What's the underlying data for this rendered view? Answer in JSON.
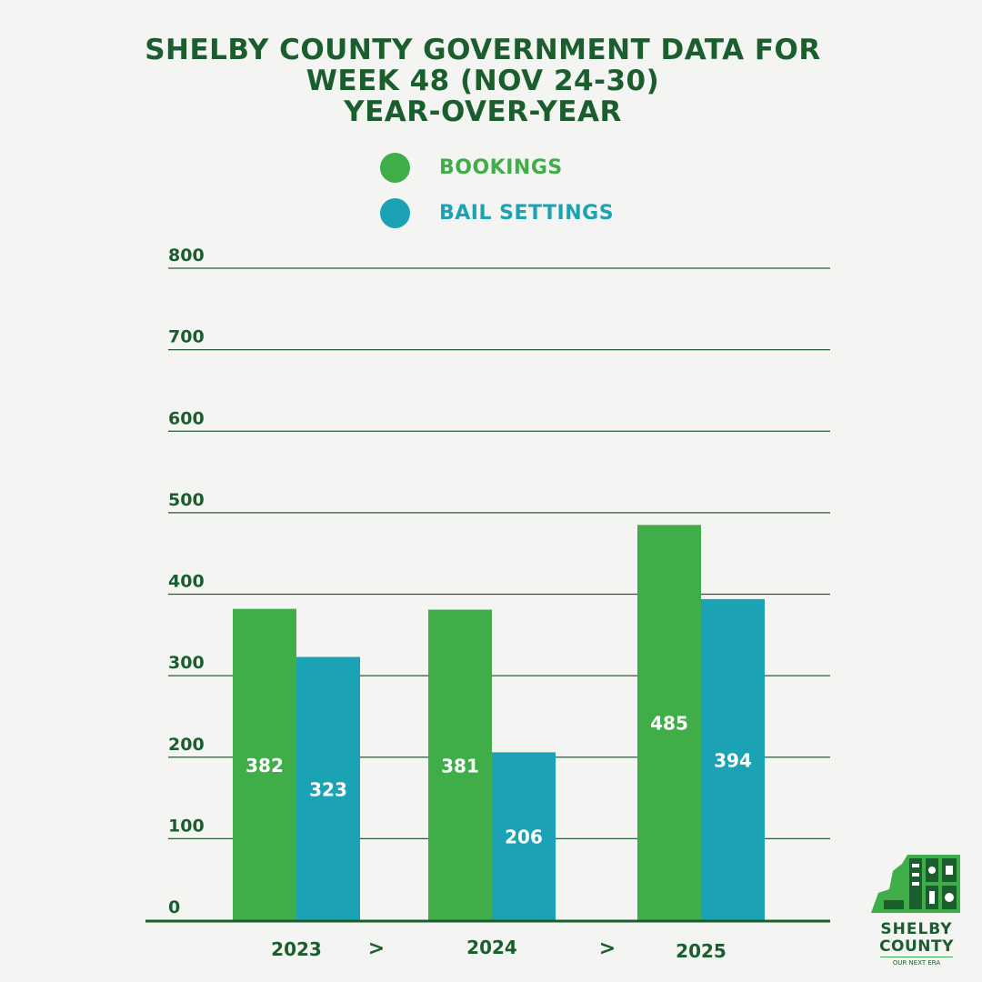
{
  "title_lines": [
    "SHELBY COUNTY GOVERNMENT DATA FOR",
    "WEEK 48 (NOV 24-30)",
    "YEAR-OVER-YEAR"
  ],
  "colors": {
    "title": "#1b5e2e",
    "bookings": "#3fae49",
    "bail": "#1ba3b5",
    "grid": "#2a5a36",
    "background": "#f4f4f2"
  },
  "legend": [
    {
      "label": "BOOKINGS",
      "color": "#3fae49"
    },
    {
      "label": "BAIL SETTINGS",
      "color": "#1ba3b5"
    }
  ],
  "chart_data": {
    "type": "bar",
    "title": "SHELBY COUNTY GOVERNMENT DATA FOR WEEK 48 (NOV 24-30) YEAR-OVER-YEAR",
    "categories": [
      "2023",
      "2024",
      "2025"
    ],
    "series": [
      {
        "name": "BOOKINGS",
        "values": [
          382,
          381,
          485
        ]
      },
      {
        "name": "BAIL SETTINGS",
        "values": [
          323,
          206,
          394
        ]
      }
    ],
    "y_ticks": [
      0,
      100,
      200,
      300,
      400,
      500,
      600,
      700,
      800
    ],
    "ylim": [
      0,
      800
    ],
    "grid": true,
    "legend_position": "top",
    "category_separator": ">"
  },
  "logo": {
    "line1": "SHELBY",
    "line2": "COUNTY",
    "tagline": "OUR NEXT ERA"
  }
}
